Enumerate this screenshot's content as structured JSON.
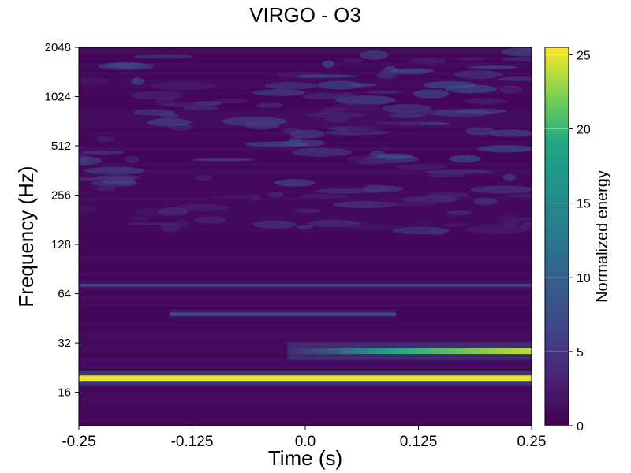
{
  "chart_data": {
    "type": "heatmap",
    "title": "VIRGO - O3",
    "xlabel": "Time (s)",
    "ylabel": "Frequency (Hz)",
    "colorbar_label": "Normalized energy",
    "x_ticks": [
      "-0.25",
      "-0.125",
      "0.0",
      "0.125",
      "0.25"
    ],
    "x_tick_values": [
      -0.25,
      -0.125,
      0.0,
      0.125,
      0.25
    ],
    "xlim": [
      -0.25,
      0.25
    ],
    "y_scale": "log2",
    "y_ticks": [
      "16",
      "32",
      "64",
      "128",
      "256",
      "512",
      "1024",
      "2048"
    ],
    "y_tick_values": [
      16,
      32,
      64,
      128,
      256,
      512,
      1024,
      2048
    ],
    "ylim": [
      10,
      2048
    ],
    "colorbar_ticks": [
      "0",
      "5",
      "10",
      "15",
      "20",
      "25"
    ],
    "colorbar_tick_values": [
      0,
      5,
      10,
      15,
      20,
      25
    ],
    "colorbar_range": [
      0,
      25.5
    ],
    "colormap": "viridis",
    "features": [
      {
        "kind": "line",
        "frequency": 19.5,
        "t_start": -0.25,
        "t_end": 0.25,
        "energy": 25
      },
      {
        "kind": "line",
        "frequency": 28.5,
        "t_start": 0.05,
        "t_end": 0.25,
        "energy": 24,
        "fade_in": true
      },
      {
        "kind": "line",
        "frequency": 48,
        "t_start": -0.15,
        "t_end": 0.1,
        "energy": 8
      },
      {
        "kind": "line",
        "frequency": 72,
        "t_start": -0.25,
        "t_end": 0.25,
        "energy": 6
      }
    ],
    "background_energy": 1.5
  }
}
